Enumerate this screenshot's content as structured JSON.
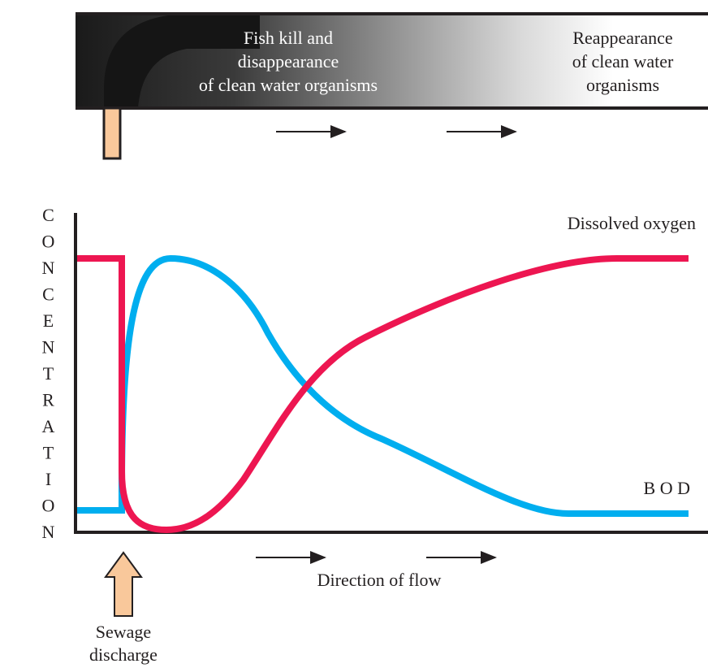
{
  "pipe": {
    "left_label": [
      "Fish kill and",
      "disappearance",
      "of clean water organisms"
    ],
    "right_label": [
      "Reappearance",
      "of clean water",
      "organisms"
    ]
  },
  "graph": {
    "y_axis_label": "CONCENTRATION",
    "curves": {
      "dissolved_oxygen": "Dissolved oxygen",
      "bod": "B O D"
    },
    "flow_label": "Direction of flow"
  },
  "sewage_label": [
    "Sewage",
    "discharge"
  ]
}
